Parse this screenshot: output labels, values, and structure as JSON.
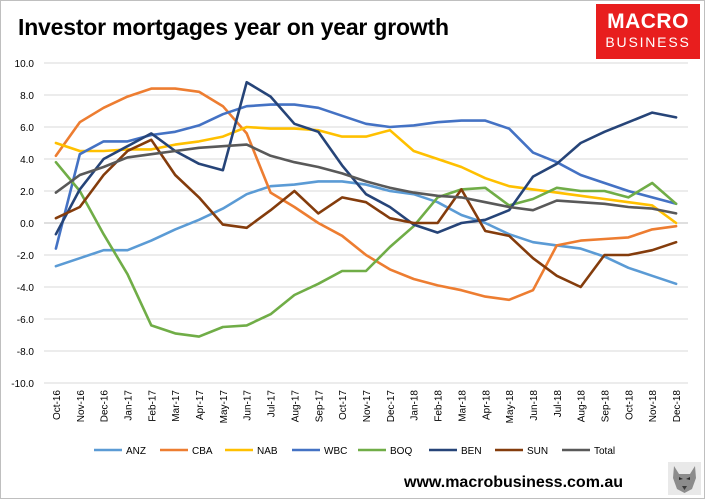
{
  "header": {
    "title": "Investor mortgages year on year growth"
  },
  "logo": {
    "line1": "MACRO",
    "line2": "BUSINESS"
  },
  "footer": {
    "url": "www.macrobusiness.com.au"
  },
  "chart_data": {
    "type": "line",
    "title": "Investor mortgages year on year growth",
    "xlabel": "",
    "ylabel": "",
    "ylim": [
      -10,
      10
    ],
    "yticks": [
      "10.0",
      "8.0",
      "6.0",
      "4.0",
      "2.0",
      "0.0",
      "-2.0",
      "-4.0",
      "-6.0",
      "-8.0",
      "-10.0"
    ],
    "grid": true,
    "legend": "bottom",
    "x": [
      "Oct-16",
      "Nov-16",
      "Dec-16",
      "Jan-17",
      "Feb-17",
      "Mar-17",
      "Apr-17",
      "May-17",
      "Jun-17",
      "Jul-17",
      "Aug-17",
      "Sep-17",
      "Oct-17",
      "Nov-17",
      "Dec-17",
      "Jan-18",
      "Feb-18",
      "Mar-18",
      "Apr-18",
      "May-18",
      "Jun-18",
      "Jul-18",
      "Aug-18",
      "Sep-18",
      "Oct-18",
      "Nov-18",
      "Dec-18"
    ],
    "series": [
      {
        "name": "ANZ",
        "color": "#5b9bd5",
        "values": [
          -2.7,
          -2.2,
          -1.7,
          -1.7,
          -1.1,
          -0.4,
          0.2,
          0.9,
          1.8,
          2.3,
          2.4,
          2.6,
          2.6,
          2.4,
          2.0,
          1.8,
          1.3,
          0.5,
          0.0,
          -0.7,
          -1.2,
          -1.4,
          -1.6,
          -2.1,
          -2.8,
          -3.3,
          -3.8
        ]
      },
      {
        "name": "CBA",
        "color": "#ed7d31",
        "values": [
          4.2,
          6.3,
          7.2,
          7.9,
          8.4,
          8.4,
          8.2,
          7.3,
          5.6,
          1.9,
          1.0,
          0.0,
          -0.8,
          -2.0,
          -2.9,
          -3.5,
          -3.9,
          -4.2,
          -4.6,
          -4.8,
          -4.2,
          -1.4,
          -1.1,
          -1.0,
          -0.9,
          -0.4,
          -0.2
        ]
      },
      {
        "name": "NAB",
        "color": "#ffc000",
        "values": [
          5.0,
          4.5,
          4.5,
          4.6,
          4.6,
          4.9,
          5.1,
          5.4,
          6.0,
          5.9,
          5.9,
          5.8,
          5.4,
          5.4,
          5.8,
          4.5,
          4.0,
          3.5,
          2.8,
          2.3,
          2.1,
          1.9,
          1.7,
          1.5,
          1.3,
          1.1,
          0.0
        ]
      },
      {
        "name": "WBC",
        "color": "#4472c4",
        "values": [
          -1.6,
          4.3,
          5.1,
          5.1,
          5.5,
          5.7,
          6.1,
          6.8,
          7.3,
          7.4,
          7.4,
          7.2,
          6.7,
          6.2,
          6.0,
          6.1,
          6.3,
          6.4,
          6.4,
          5.9,
          4.4,
          3.8,
          3.0,
          2.5,
          2.0,
          1.6,
          1.2
        ]
      },
      {
        "name": "BOQ",
        "color": "#70ad47",
        "values": [
          3.8,
          2.0,
          -0.7,
          -3.2,
          -6.4,
          -6.9,
          -7.1,
          -6.5,
          -6.4,
          -5.7,
          -4.5,
          -3.8,
          -3.0,
          -3.0,
          -1.5,
          -0.2,
          1.6,
          2.1,
          2.2,
          1.1,
          1.5,
          2.2,
          2.0,
          2.0,
          1.6,
          2.5,
          1.2
        ]
      },
      {
        "name": "BEN",
        "color": "#264478",
        "values": [
          -0.7,
          2.1,
          4.0,
          4.8,
          5.6,
          4.5,
          3.7,
          3.3,
          8.8,
          7.9,
          6.2,
          5.7,
          3.6,
          1.8,
          1.0,
          -0.1,
          -0.6,
          0.0,
          0.2,
          0.8,
          2.9,
          3.7,
          5.0,
          5.7,
          6.3,
          6.9,
          6.6
        ]
      },
      {
        "name": "SUN",
        "color": "#843c0c",
        "values": [
          0.3,
          1.0,
          3.0,
          4.5,
          5.2,
          3.0,
          1.6,
          -0.1,
          -0.3,
          0.8,
          2.0,
          0.6,
          1.6,
          1.3,
          0.3,
          0.0,
          0.0,
          2.1,
          -0.5,
          -0.8,
          -2.2,
          -3.3,
          -4.0,
          -2.0,
          -2.0,
          -1.7,
          -1.2
        ]
      },
      {
        "name": "Total",
        "color": "#595959",
        "values": [
          1.9,
          3.0,
          3.5,
          4.1,
          4.3,
          4.5,
          4.7,
          4.8,
          4.9,
          4.2,
          3.8,
          3.5,
          3.1,
          2.6,
          2.2,
          1.9,
          1.7,
          1.6,
          1.3,
          1.0,
          0.8,
          1.4,
          1.3,
          1.2,
          1.0,
          0.9,
          0.6
        ]
      }
    ]
  }
}
